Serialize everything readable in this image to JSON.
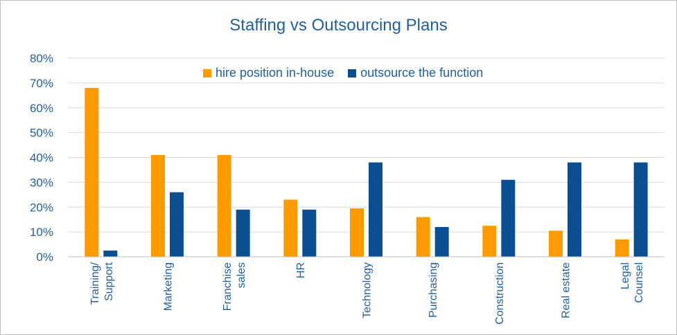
{
  "chart_data": {
    "type": "bar",
    "title": "Staffing vs Outsourcing Plans",
    "categories": [
      "Training/\nSupport",
      "Marketing",
      "Franchise\nsales",
      "HR",
      "Technology",
      "Purchasing",
      "Construction",
      "Real estate",
      "Legal\nCounsel"
    ],
    "series": [
      {
        "name": "hire position in-house",
        "color": "#ff9a00",
        "values": [
          68,
          41,
          41,
          23,
          19.5,
          16,
          12.5,
          10.5,
          7
        ]
      },
      {
        "name": "outsource the function",
        "color": "#0b4f92",
        "values": [
          2.5,
          26,
          19,
          19,
          38,
          12,
          31,
          38,
          38
        ]
      }
    ],
    "ylim": [
      0,
      80
    ],
    "yticks": [
      "0%",
      "10%",
      "20%",
      "30%",
      "40%",
      "50%",
      "60%",
      "70%",
      "80%"
    ],
    "grid": true,
    "legend": "top-center"
  }
}
